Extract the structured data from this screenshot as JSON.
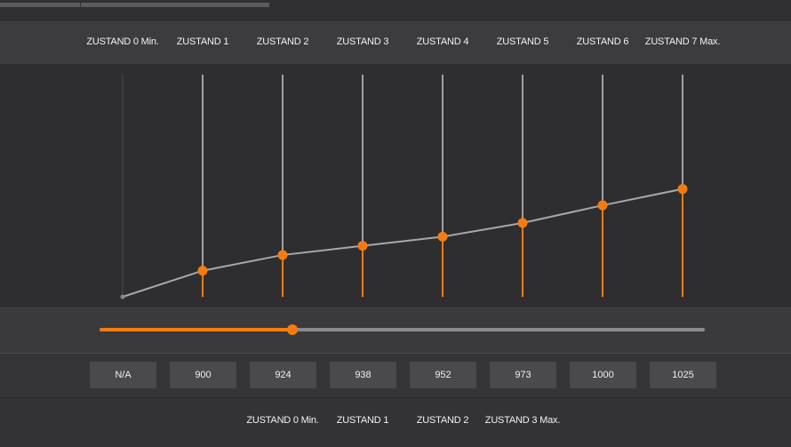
{
  "upper_states": [
    "ZUSTAND 0 Min.",
    "ZUSTAND 1",
    "ZUSTAND 2",
    "ZUSTAND 3",
    "ZUSTAND 4",
    "ZUSTAND 5",
    "ZUSTAND 6",
    "ZUSTAND 7 Max."
  ],
  "values": [
    "N/A",
    "900",
    "924",
    "938",
    "952",
    "973",
    "1000",
    "1025"
  ],
  "lower_states": [
    "ZUSTAND 0 Min.",
    "ZUSTAND 1",
    "ZUSTAND 2",
    "ZUSTAND 3 Max."
  ],
  "slider": {
    "fraction": 0.318
  },
  "colors": {
    "accent": "#f57c10",
    "line": "#a8a8ab",
    "background": "#3a3a3d"
  },
  "chart_data": {
    "type": "line",
    "categories": [
      "ZUSTAND 0 Min.",
      "ZUSTAND 1",
      "ZUSTAND 2",
      "ZUSTAND 3",
      "ZUSTAND 4",
      "ZUSTAND 5",
      "ZUSTAND 6",
      "ZUSTAND 7 Max."
    ],
    "values": [
      null,
      900,
      924,
      938,
      952,
      973,
      1000,
      1025
    ],
    "ylim": [
      860,
      1200
    ]
  }
}
